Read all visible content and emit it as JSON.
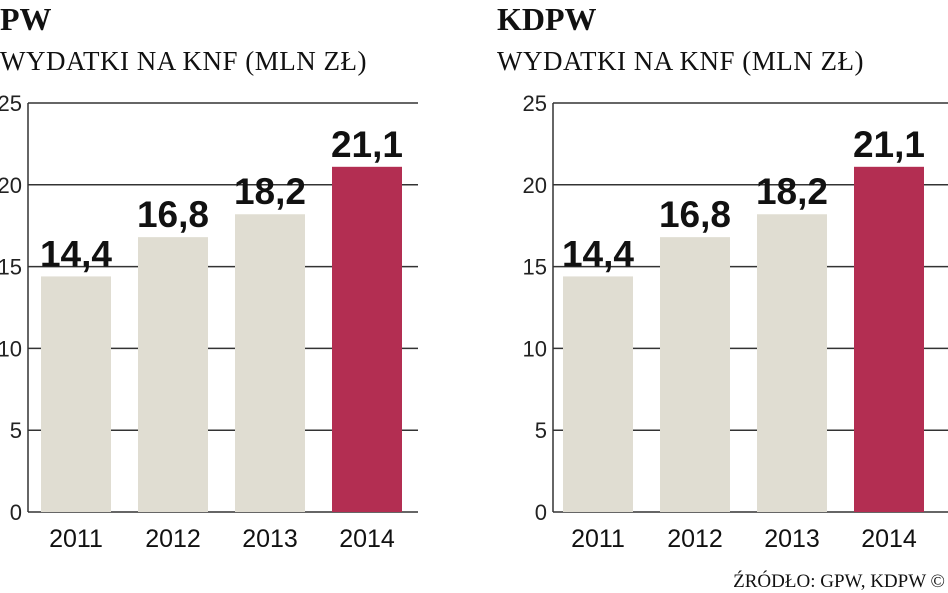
{
  "colors": {
    "bar_default": "#e0ddd2",
    "bar_highlight": "#b32e52",
    "axis_line": "#333333",
    "background": "#ffffff"
  },
  "chart_data": [
    {
      "type": "bar",
      "title": "GPW",
      "title_visible": "PW",
      "subtitle": "WYDATKI NA KNF (MLN ZŁ)",
      "subtitle_visible": "WYDATKI NA KNF (MLN ZŁ)",
      "categories": [
        "2011",
        "2012",
        "2013",
        "2014"
      ],
      "values": [
        14.4,
        16.8,
        18.2,
        21.1
      ],
      "value_labels": [
        "14,4",
        "16,8",
        "18,2",
        "21,1"
      ],
      "highlight_index": 3,
      "y_ticks": [
        0,
        5,
        10,
        15,
        20,
        25
      ],
      "y_tick_labels": [
        "0",
        "5",
        "10",
        "15",
        "20",
        "25"
      ],
      "ylim": [
        0,
        25
      ],
      "xlabel": "",
      "ylabel": "",
      "grid": true
    },
    {
      "type": "bar",
      "title": "KDPW",
      "subtitle": "WYDATKI NA KNF (MLN ZŁ)",
      "categories": [
        "2011",
        "2012",
        "2013",
        "2014"
      ],
      "values": [
        14.4,
        16.8,
        18.2,
        21.1
      ],
      "value_labels": [
        "14,4",
        "16,8",
        "18,2",
        "21,1"
      ],
      "highlight_index": 3,
      "y_ticks": [
        0,
        5,
        10,
        15,
        20,
        25
      ],
      "y_tick_labels": [
        "0",
        "5",
        "10",
        "15",
        "20",
        "25"
      ],
      "ylim": [
        0,
        25
      ],
      "xlabel": "",
      "ylabel": "",
      "grid": true
    }
  ],
  "source": "ŹRÓDŁO: GPW, KDPW ©"
}
